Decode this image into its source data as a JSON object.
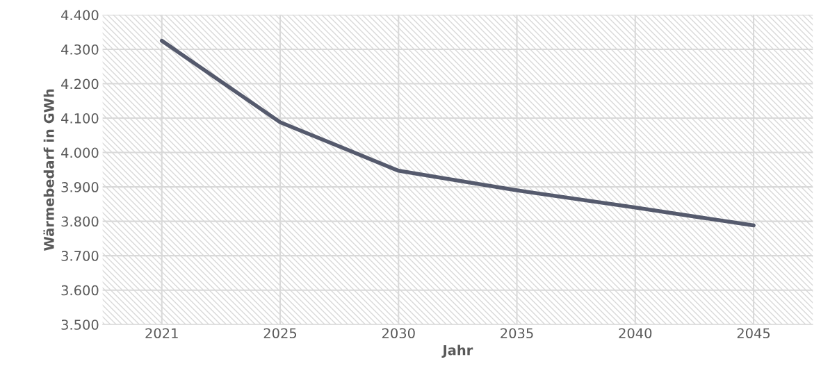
{
  "chart_data": {
    "type": "line",
    "xlabel": "Jahr",
    "ylabel": "Wärmebedarf in GWh",
    "categories": [
      "2021",
      "2025",
      "2030",
      "2035",
      "2040",
      "2045"
    ],
    "series": [
      {
        "color": "#555a6d",
        "values": [
          4325,
          4088,
          3947,
          3890,
          3840,
          3788
        ]
      }
    ],
    "ylim": [
      3500,
      4400
    ],
    "yticks": [
      {
        "value": 3500,
        "label": "3.500"
      },
      {
        "value": 3600,
        "label": "3.600"
      },
      {
        "value": 3700,
        "label": "3.700"
      },
      {
        "value": 3800,
        "label": "3.800"
      },
      {
        "value": 3900,
        "label": "3.900"
      },
      {
        "value": 4000,
        "label": "4.000"
      },
      {
        "value": 4100,
        "label": "4.100"
      },
      {
        "value": 4200,
        "label": "4.200"
      },
      {
        "value": 4300,
        "label": "4.300"
      },
      {
        "value": 4400,
        "label": "4.400"
      }
    ],
    "grid": true,
    "marker": "none",
    "line_style": "solid"
  }
}
